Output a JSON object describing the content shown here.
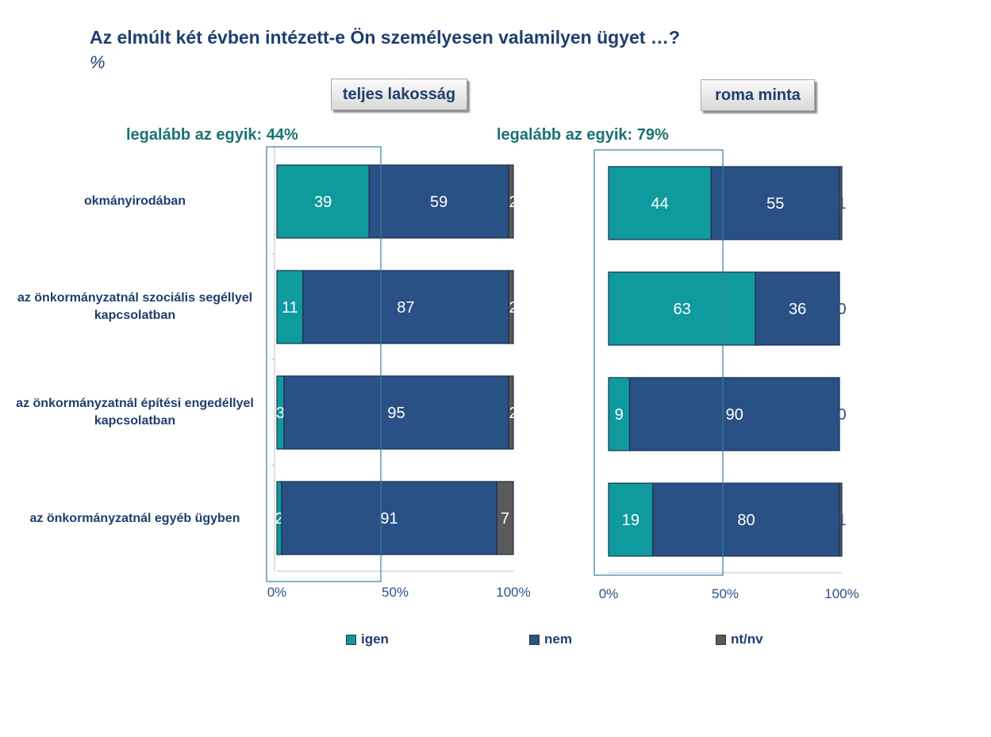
{
  "title": "Az elmúlt két évben intézett-e Ön személyesen valamilyen ügyet …?",
  "subtitle": "%",
  "colors": {
    "igen": "#0f9a9e",
    "nem": "#2a5185",
    "nt_nv": "#5a5a5a",
    "axis_text": "#2a5185"
  },
  "panels": [
    {
      "label": "teljes lakosság",
      "summary": "legalább az egyik: 44%"
    },
    {
      "label": "roma minta",
      "summary": "legalább az egyik: 79%"
    }
  ],
  "legend": [
    "igen",
    "nem",
    "nt/nv"
  ],
  "chart_data": [
    {
      "type": "bar",
      "orientation": "horizontal",
      "stacked": "percent",
      "panel": "teljes lakosság",
      "categories": [
        "okmányirodában",
        "az önkormányzatnál szociális segéllyel kapcsolatban",
        "az önkormányzatnál építési engedéllyel kapcsolatban",
        "az önkormányzatnál egyéb ügyben"
      ],
      "series": [
        {
          "name": "igen",
          "values": [
            39,
            11,
            3,
            2
          ]
        },
        {
          "name": "nem",
          "values": [
            59,
            87,
            95,
            91
          ]
        },
        {
          "name": "nt/nv",
          "values": [
            2,
            2,
            2,
            7
          ]
        }
      ],
      "xlim": [
        0,
        100
      ],
      "xticks": [
        "0%",
        "50%",
        "100%"
      ],
      "highlight": "legalább az egyik: 44%"
    },
    {
      "type": "bar",
      "orientation": "horizontal",
      "stacked": "percent",
      "panel": "roma minta",
      "categories": [
        "okmányirodában",
        "az önkormányzatnál szociális segéllyel kapcsolatban",
        "az önkormányzatnál építési engedéllyel kapcsolatban",
        "az önkormányzatnál egyéb ügyben"
      ],
      "series": [
        {
          "name": "igen",
          "values": [
            44,
            63,
            9,
            19
          ]
        },
        {
          "name": "nem",
          "values": [
            55,
            36,
            90,
            80
          ]
        },
        {
          "name": "nt/nv",
          "values": [
            1,
            0,
            0,
            1
          ]
        }
      ],
      "xlim": [
        0,
        100
      ],
      "xticks": [
        "0%",
        "50%",
        "100%"
      ],
      "highlight": "legalább az egyik: 79%"
    }
  ]
}
